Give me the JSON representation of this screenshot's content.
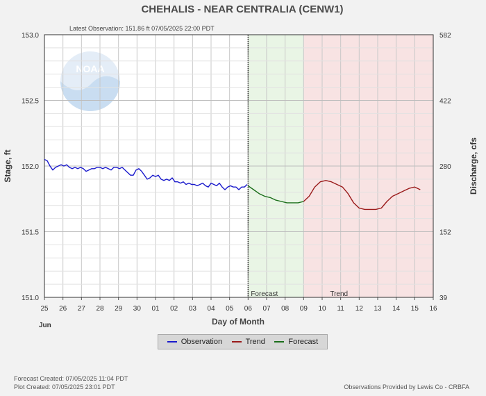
{
  "header": {
    "title": "CHEHALIS - NEAR CENTRALIA  (CENW1)",
    "latest_observation": "Latest Observation:  151.86 ft 07/05/2025 22:00 PDT"
  },
  "chart_data": {
    "type": "line",
    "xlabel": "Day of Month",
    "ylabel_left": "Stage, ft",
    "ylabel_right": "Discharge, cfs",
    "x_start_month_label": "Jun",
    "x_ticks": [
      "25",
      "26",
      "27",
      "28",
      "29",
      "30",
      "01",
      "02",
      "03",
      "04",
      "05",
      "06",
      "07",
      "08",
      "09",
      "10",
      "11",
      "12",
      "13",
      "14",
      "15",
      "16"
    ],
    "xlim": [
      0,
      21
    ],
    "ylim_left": [
      151.0,
      153.0
    ],
    "y_ticks_left": [
      "151.0",
      "151.5",
      "152.0",
      "152.5",
      "153.0"
    ],
    "y_ticks_left_values": [
      151.0,
      151.5,
      152.0,
      152.5,
      153.0
    ],
    "y_ticks_right": [
      "39",
      "152",
      "280",
      "422",
      "582"
    ],
    "y_ticks_right_values": [
      151.0,
      151.5,
      152.0,
      152.5,
      153.0
    ],
    "grid": true,
    "regions": [
      {
        "name": "Forecast",
        "x_start": 11.0,
        "x_end": 14.0,
        "color": "#e9f5e5"
      },
      {
        "name": "Trend",
        "x_start": 14.0,
        "x_end": 21.0,
        "color": "#f8e3e3"
      }
    ],
    "series": [
      {
        "name": "Observation",
        "color": "#1a1acc",
        "points": [
          [
            0.0,
            152.05
          ],
          [
            0.15,
            152.04
          ],
          [
            0.3,
            152.0
          ],
          [
            0.45,
            151.97
          ],
          [
            0.6,
            151.99
          ],
          [
            0.75,
            152.0
          ],
          [
            0.9,
            152.01
          ],
          [
            1.05,
            152.0
          ],
          [
            1.2,
            152.01
          ],
          [
            1.35,
            151.99
          ],
          [
            1.5,
            151.98
          ],
          [
            1.65,
            151.99
          ],
          [
            1.8,
            151.98
          ],
          [
            1.95,
            151.99
          ],
          [
            2.1,
            151.98
          ],
          [
            2.25,
            151.96
          ],
          [
            2.4,
            151.97
          ],
          [
            2.55,
            151.98
          ],
          [
            2.7,
            151.98
          ],
          [
            2.85,
            151.99
          ],
          [
            3.0,
            151.99
          ],
          [
            3.15,
            151.98
          ],
          [
            3.3,
            151.99
          ],
          [
            3.45,
            151.98
          ],
          [
            3.6,
            151.97
          ],
          [
            3.75,
            151.99
          ],
          [
            3.9,
            151.99
          ],
          [
            4.05,
            151.98
          ],
          [
            4.2,
            151.99
          ],
          [
            4.35,
            151.97
          ],
          [
            4.5,
            151.95
          ],
          [
            4.65,
            151.93
          ],
          [
            4.8,
            151.93
          ],
          [
            4.95,
            151.97
          ],
          [
            5.1,
            151.98
          ],
          [
            5.25,
            151.96
          ],
          [
            5.4,
            151.93
          ],
          [
            5.55,
            151.9
          ],
          [
            5.7,
            151.91
          ],
          [
            5.85,
            151.93
          ],
          [
            6.0,
            151.92
          ],
          [
            6.15,
            151.93
          ],
          [
            6.3,
            151.9
          ],
          [
            6.45,
            151.89
          ],
          [
            6.6,
            151.9
          ],
          [
            6.75,
            151.89
          ],
          [
            6.9,
            151.91
          ],
          [
            7.05,
            151.88
          ],
          [
            7.2,
            151.88
          ],
          [
            7.35,
            151.87
          ],
          [
            7.5,
            151.88
          ],
          [
            7.65,
            151.86
          ],
          [
            7.8,
            151.87
          ],
          [
            7.95,
            151.86
          ],
          [
            8.1,
            151.86
          ],
          [
            8.25,
            151.85
          ],
          [
            8.4,
            151.86
          ],
          [
            8.55,
            151.87
          ],
          [
            8.7,
            151.85
          ],
          [
            8.85,
            151.84
          ],
          [
            9.0,
            151.87
          ],
          [
            9.15,
            151.86
          ],
          [
            9.3,
            151.85
          ],
          [
            9.45,
            151.87
          ],
          [
            9.6,
            151.84
          ],
          [
            9.75,
            151.82
          ],
          [
            9.9,
            151.84
          ],
          [
            10.05,
            151.85
          ],
          [
            10.2,
            151.84
          ],
          [
            10.35,
            151.84
          ],
          [
            10.5,
            151.82
          ],
          [
            10.65,
            151.84
          ],
          [
            10.8,
            151.84
          ],
          [
            10.95,
            151.86
          ]
        ]
      },
      {
        "name": "Forecast",
        "color": "#1a6e1a",
        "points": [
          [
            11.0,
            151.85
          ],
          [
            11.3,
            151.82
          ],
          [
            11.6,
            151.79
          ],
          [
            11.9,
            151.77
          ],
          [
            12.2,
            151.76
          ],
          [
            12.5,
            151.74
          ],
          [
            12.8,
            151.73
          ],
          [
            13.1,
            151.72
          ],
          [
            13.4,
            151.72
          ],
          [
            13.7,
            151.72
          ],
          [
            14.0,
            151.73
          ]
        ]
      },
      {
        "name": "Trend",
        "color": "#9a1a1a",
        "points": [
          [
            14.0,
            151.73
          ],
          [
            14.3,
            151.77
          ],
          [
            14.6,
            151.84
          ],
          [
            14.9,
            151.88
          ],
          [
            15.2,
            151.89
          ],
          [
            15.5,
            151.88
          ],
          [
            15.8,
            151.86
          ],
          [
            16.1,
            151.84
          ],
          [
            16.4,
            151.79
          ],
          [
            16.7,
            151.72
          ],
          [
            17.0,
            151.68
          ],
          [
            17.3,
            151.67
          ],
          [
            17.6,
            151.67
          ],
          [
            17.9,
            151.67
          ],
          [
            18.2,
            151.68
          ],
          [
            18.5,
            151.73
          ],
          [
            18.8,
            151.77
          ],
          [
            19.1,
            151.79
          ],
          [
            19.4,
            151.81
          ],
          [
            19.7,
            151.83
          ],
          [
            20.0,
            151.84
          ],
          [
            20.3,
            151.82
          ]
        ]
      }
    ]
  },
  "legend": {
    "items": [
      {
        "label": "Observation",
        "color": "#1a1acc"
      },
      {
        "label": "Trend",
        "color": "#9a1a1a"
      },
      {
        "label": "Forecast",
        "color": "#1a6e1a"
      }
    ]
  },
  "footer": {
    "forecast_created": "Forecast Created: 07/05/2025 11:04 PDT",
    "plot_created": "Plot Created: 07/05/2025 23:01 PDT",
    "provider": "Observations Provided by Lewis Co - CRBFA"
  },
  "watermark": {
    "text": "NOAA"
  }
}
